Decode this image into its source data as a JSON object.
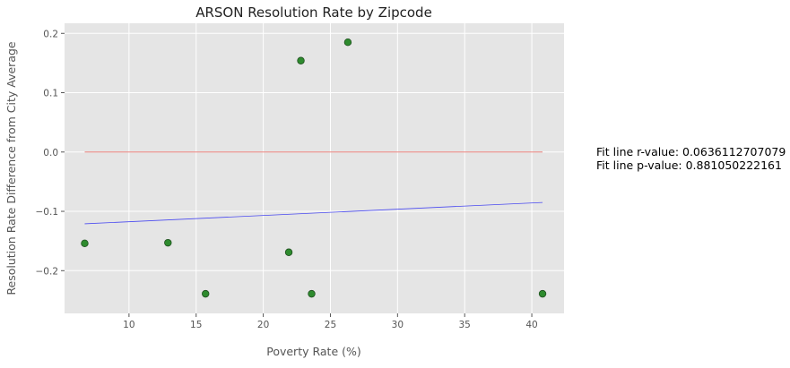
{
  "chart_data": {
    "type": "scatter",
    "title": "ARSON Resolution Rate by Zipcode",
    "xlabel": "Poverty Rate (%)",
    "ylabel": "Resolution Rate Difference from City Average",
    "xlim": [
      5.2,
      42.4
    ],
    "ylim": [
      -0.272,
      0.217
    ],
    "xticks": [
      10,
      15,
      20,
      25,
      30,
      35,
      40
    ],
    "xtick_labels": [
      "10",
      "15",
      "20",
      "25",
      "30",
      "35",
      "40"
    ],
    "yticks": [
      -0.2,
      -0.1,
      0.0,
      0.1,
      0.2
    ],
    "ytick_labels": [
      "−0.2",
      "−0.1",
      "0.0",
      "0.1",
      "0.2"
    ],
    "grid": true,
    "points": {
      "x": [
        6.7,
        12.9,
        15.7,
        21.9,
        22.8,
        23.6,
        26.3,
        40.8
      ],
      "y": [
        -0.154,
        -0.153,
        -0.239,
        -0.169,
        0.154,
        -0.239,
        0.185,
        -0.239
      ]
    },
    "reference_line": {
      "x": [
        6.7,
        40.8
      ],
      "y": [
        0.0,
        0.0
      ]
    },
    "fit_line": {
      "x": [
        6.7,
        40.8
      ],
      "y": [
        -0.121,
        -0.085
      ]
    },
    "annotations": [
      "Fit line r-value: 0.0636112707079",
      "Fit line p-value: 0.881050222161"
    ]
  },
  "colors": {
    "plot_background": "#e5e5e5",
    "grid": "#ffffff",
    "points": "#2e8b2e",
    "point_edge": "#1f4f1f",
    "reference_line": "#e8706a",
    "fit_line": "#4a4af0"
  }
}
